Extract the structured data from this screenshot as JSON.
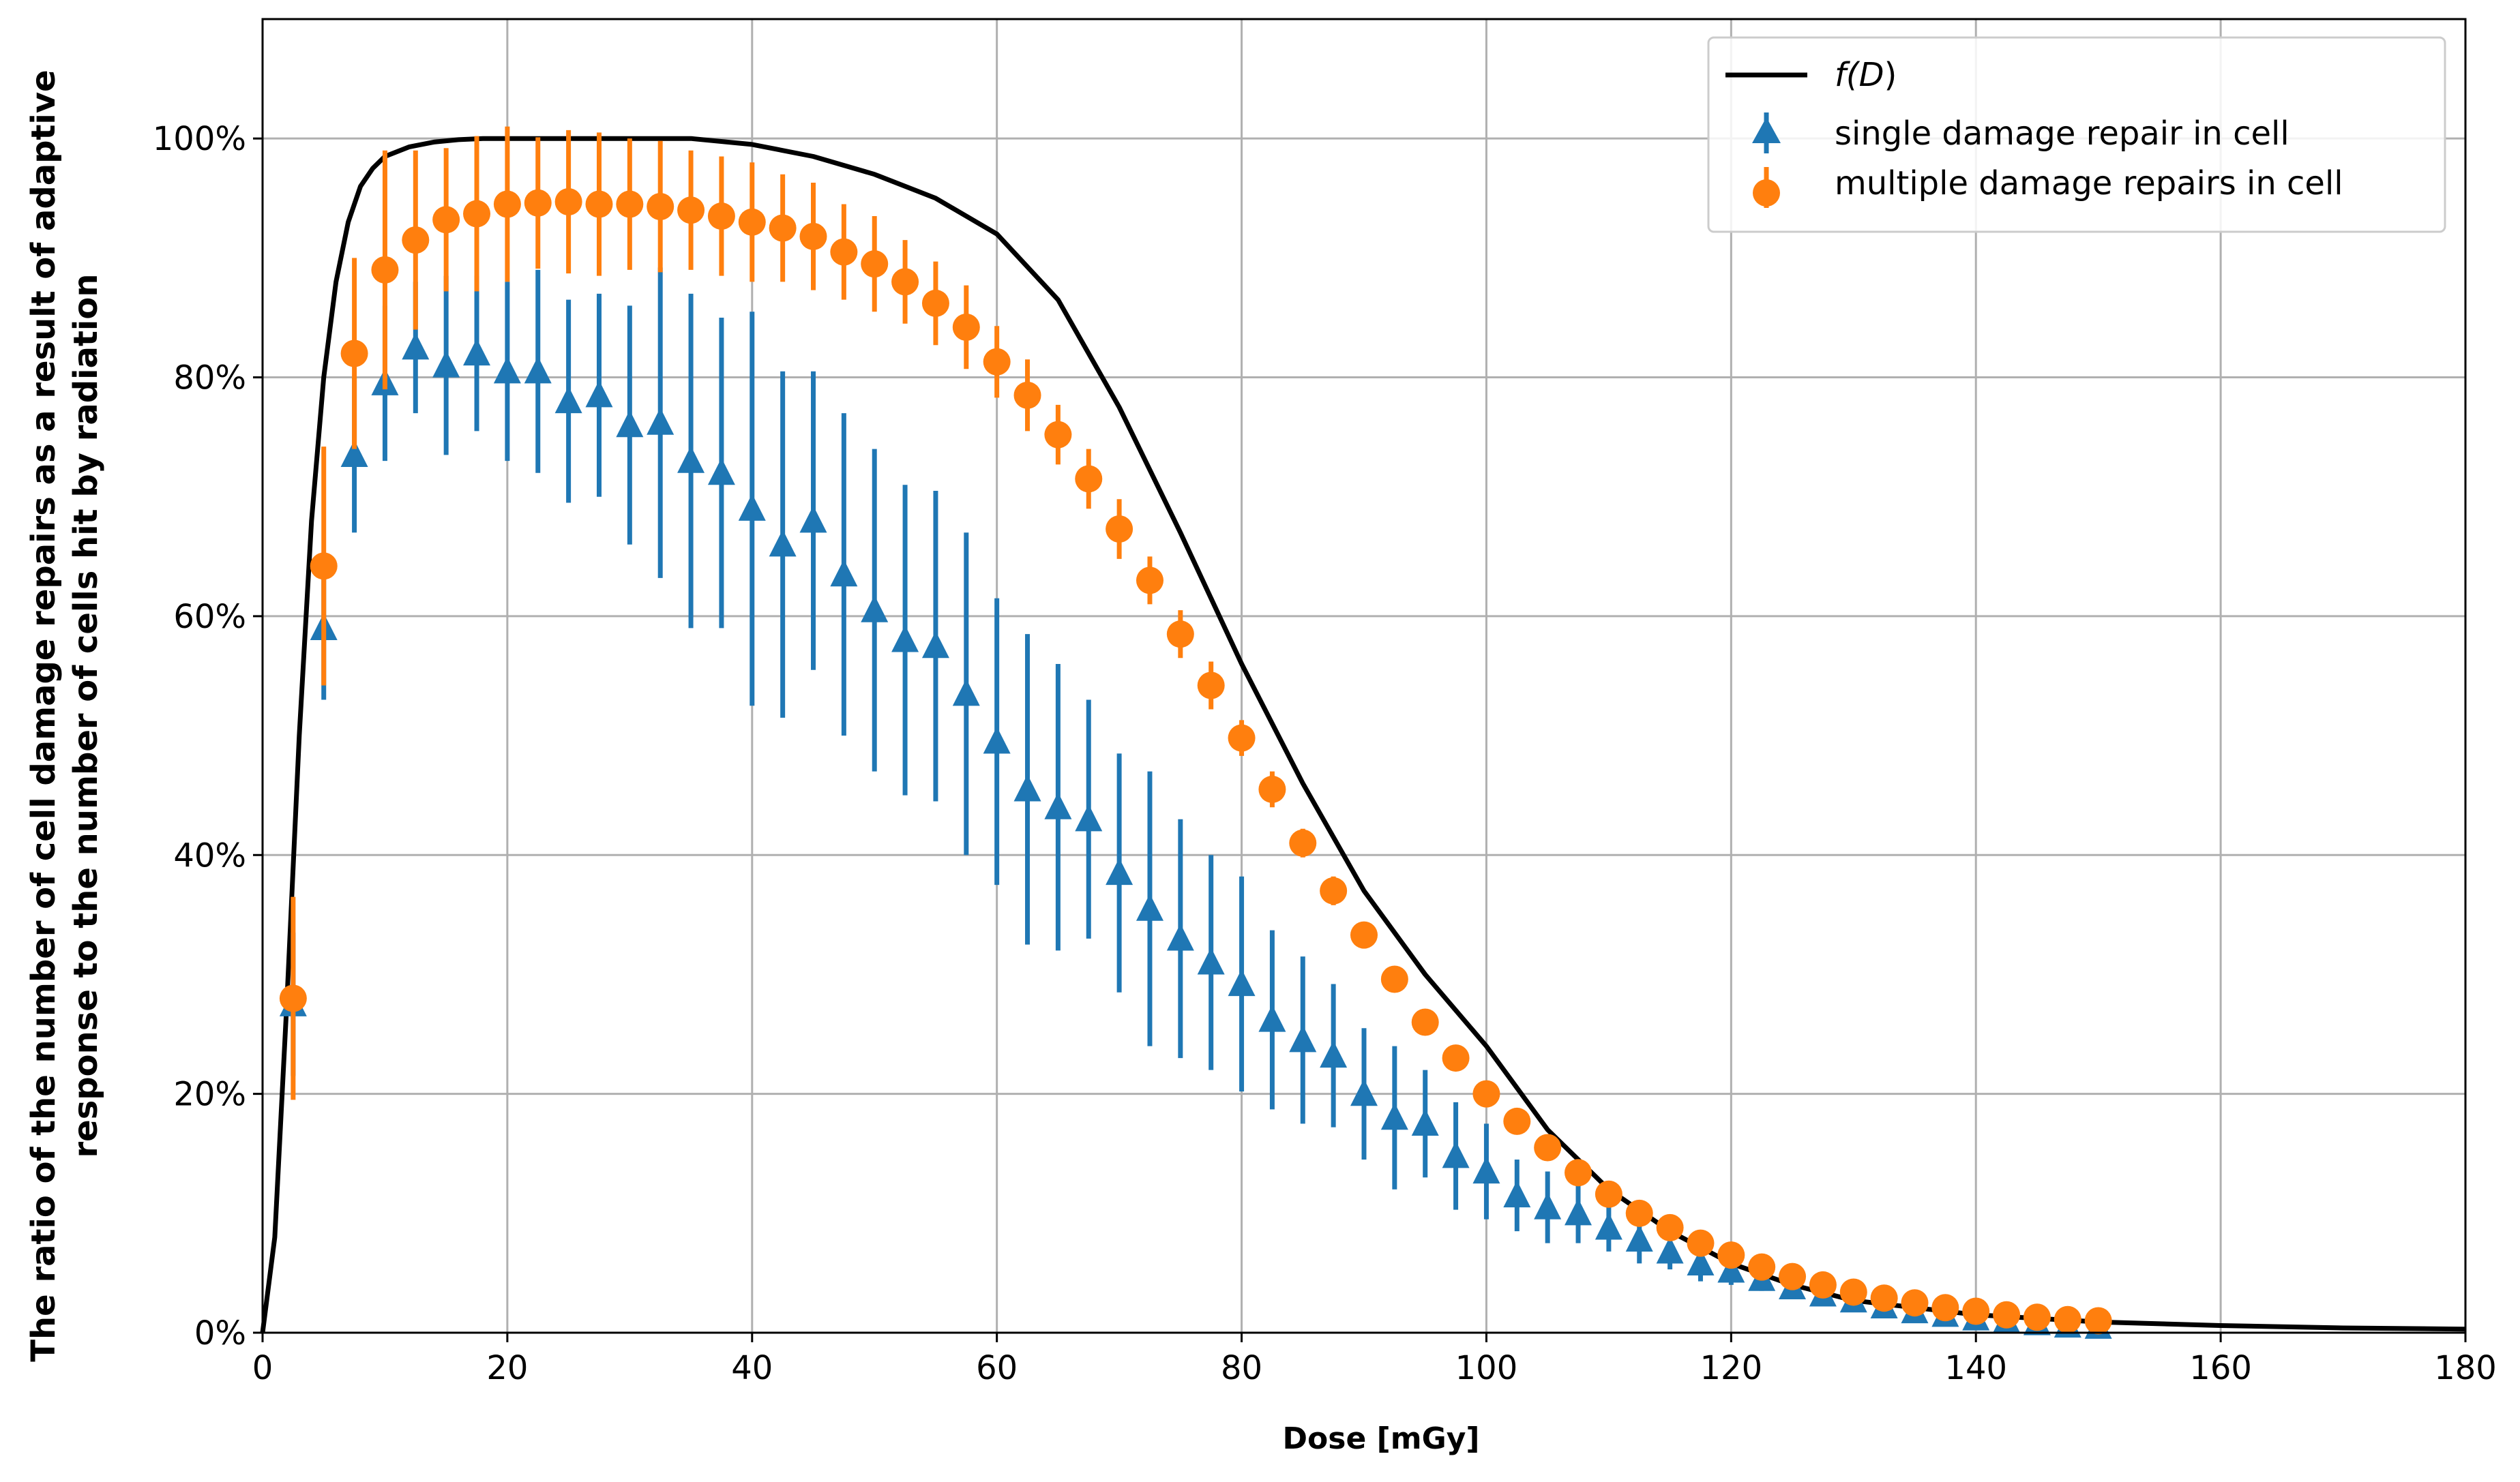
{
  "colors": {
    "curve": "#000000",
    "single": "#1f77b4",
    "multiple": "#ff7f0e",
    "grid": "#b0b0b0"
  },
  "chart_data": {
    "type": "scatter",
    "title": "",
    "xlabel": "Dose [mGy]",
    "ylabel_line1": "The ratio of the number of cell damage repairs as a result of adaptive",
    "ylabel_line2": "response to the number of cells hit by radiation",
    "xlim": [
      0,
      180
    ],
    "ylim": [
      0,
      1.1
    ],
    "xticks": [
      0,
      20,
      40,
      60,
      80,
      100,
      120,
      140,
      160,
      180
    ],
    "xtick_labels": [
      "0",
      "20",
      "40",
      "60",
      "80",
      "100",
      "120",
      "140",
      "160",
      "180"
    ],
    "yticks": [
      0,
      0.2,
      0.4,
      0.6,
      0.8,
      1.0
    ],
    "ytick_labels": [
      "0%",
      "20%",
      "40%",
      "60%",
      "80%",
      "100%"
    ],
    "grid": true,
    "legend_position": "top-right",
    "legend": {
      "curve_prefix": "f(",
      "curve_var": "D",
      "curve_suffix": ")",
      "single": "single damage repair in cell",
      "multiple": "multiple damage repairs in cell"
    },
    "curve": {
      "name": "f(D)",
      "x": [
        0,
        1,
        2,
        3,
        4,
        5,
        6,
        7,
        8,
        9,
        10,
        12,
        14,
        16,
        18,
        20,
        25,
        30,
        35,
        40,
        45,
        50,
        55,
        60,
        65,
        70,
        75,
        80,
        85,
        90,
        95,
        100,
        105,
        110,
        115,
        120,
        125,
        130,
        140,
        150,
        160,
        170,
        180
      ],
      "y": [
        0,
        0.08,
        0.28,
        0.5,
        0.68,
        0.8,
        0.88,
        0.93,
        0.96,
        0.975,
        0.985,
        0.993,
        0.997,
        0.999,
        1.0,
        1.0,
        1.0,
        1.0,
        1.0,
        0.995,
        0.985,
        0.97,
        0.95,
        0.92,
        0.865,
        0.775,
        0.67,
        0.56,
        0.46,
        0.37,
        0.3,
        0.24,
        0.17,
        0.12,
        0.085,
        0.058,
        0.04,
        0.027,
        0.015,
        0.009,
        0.006,
        0.004,
        0.003
      ]
    },
    "series": [
      {
        "name": "single damage repair in cell",
        "marker": "triangle",
        "x": [
          2.5,
          5,
          7.5,
          10,
          12.5,
          15,
          17.5,
          20,
          22.5,
          25,
          27.5,
          30,
          32.5,
          35,
          37.5,
          40,
          42.5,
          45,
          47.5,
          50,
          52.5,
          55,
          57.5,
          60,
          62.5,
          65,
          67.5,
          70,
          72.5,
          75,
          77.5,
          80,
          82.5,
          85,
          87.5,
          90,
          92.5,
          95,
          97.5,
          100,
          102.5,
          105,
          107.5,
          110,
          112.5,
          115,
          117.5,
          120,
          122.5,
          125,
          127.5,
          130,
          132.5,
          135,
          137.5,
          140,
          142.5,
          145,
          147.5,
          150
        ],
        "y": [
          0.275,
          0.59,
          0.735,
          0.795,
          0.825,
          0.81,
          0.82,
          0.805,
          0.805,
          0.78,
          0.785,
          0.76,
          0.762,
          0.73,
          0.72,
          0.69,
          0.66,
          0.68,
          0.635,
          0.605,
          0.58,
          0.575,
          0.535,
          0.495,
          0.455,
          0.44,
          0.43,
          0.385,
          0.355,
          0.33,
          0.31,
          0.292,
          0.262,
          0.245,
          0.232,
          0.2,
          0.18,
          0.175,
          0.148,
          0.135,
          0.115,
          0.105,
          0.1,
          0.088,
          0.078,
          0.068,
          0.058,
          0.052,
          0.045,
          0.038,
          0.032,
          0.027,
          0.022,
          0.018,
          0.015,
          0.012,
          0.01,
          0.008,
          0.006,
          0.005
        ],
        "err": [
          0.06,
          0.06,
          0.065,
          0.065,
          0.055,
          0.075,
          0.065,
          0.075,
          0.085,
          0.085,
          0.085,
          0.1,
          0.13,
          0.14,
          0.13,
          0.165,
          0.145,
          0.125,
          0.135,
          0.135,
          0.13,
          0.13,
          0.135,
          0.12,
          0.13,
          0.12,
          0.1,
          0.1,
          0.115,
          0.1,
          0.09,
          0.09,
          0.075,
          0.07,
          0.06,
          0.055,
          0.06,
          0.045,
          0.045,
          0.04,
          0.03,
          0.03,
          0.025,
          0.02,
          0.02,
          0.015,
          0.015,
          0.012,
          0.01,
          0.01,
          0.008,
          0.007,
          0.006,
          0.005,
          0.004,
          0.004,
          0.003,
          0.003,
          0.002,
          0.002
        ]
      },
      {
        "name": "multiple damage repairs in cell",
        "marker": "circle",
        "x": [
          2.5,
          5,
          7.5,
          10,
          12.5,
          15,
          17.5,
          20,
          22.5,
          25,
          27.5,
          30,
          32.5,
          35,
          37.5,
          40,
          42.5,
          45,
          47.5,
          50,
          52.5,
          55,
          57.5,
          60,
          62.5,
          65,
          67.5,
          70,
          72.5,
          75,
          77.5,
          80,
          82.5,
          85,
          87.5,
          90,
          92.5,
          95,
          97.5,
          100,
          102.5,
          105,
          107.5,
          110,
          112.5,
          115,
          117.5,
          120,
          122.5,
          125,
          127.5,
          130,
          132.5,
          135,
          137.5,
          140,
          142.5,
          145,
          147.5,
          150
        ],
        "y": [
          0.28,
          0.642,
          0.82,
          0.89,
          0.915,
          0.932,
          0.937,
          0.945,
          0.946,
          0.947,
          0.945,
          0.945,
          0.943,
          0.94,
          0.935,
          0.93,
          0.925,
          0.918,
          0.905,
          0.895,
          0.88,
          0.862,
          0.842,
          0.813,
          0.785,
          0.752,
          0.715,
          0.673,
          0.63,
          0.585,
          0.542,
          0.498,
          0.455,
          0.41,
          0.37,
          0.333,
          0.296,
          0.26,
          0.23,
          0.2,
          0.177,
          0.155,
          0.134,
          0.116,
          0.1,
          0.088,
          0.075,
          0.065,
          0.055,
          0.047,
          0.04,
          0.034,
          0.029,
          0.025,
          0.021,
          0.018,
          0.015,
          0.013,
          0.011,
          0.01
        ],
        "err": [
          0.085,
          0.1,
          0.08,
          0.1,
          0.075,
          0.06,
          0.065,
          0.065,
          0.055,
          0.06,
          0.06,
          0.055,
          0.055,
          0.05,
          0.05,
          0.05,
          0.045,
          0.045,
          0.04,
          0.04,
          0.035,
          0.035,
          0.035,
          0.03,
          0.03,
          0.025,
          0.025,
          0.025,
          0.02,
          0.02,
          0.02,
          0.015,
          0.015,
          0.012,
          0.012,
          0.01,
          0.01,
          0.008,
          0.008,
          0.006,
          0.006,
          0.005,
          0.005,
          0.004,
          0.004,
          0.004,
          0.003,
          0.003,
          0.003,
          0.002,
          0.002,
          0.002,
          0.002,
          0.002,
          0.001,
          0.001,
          0.001,
          0.001,
          0.001,
          0.001
        ]
      }
    ]
  }
}
